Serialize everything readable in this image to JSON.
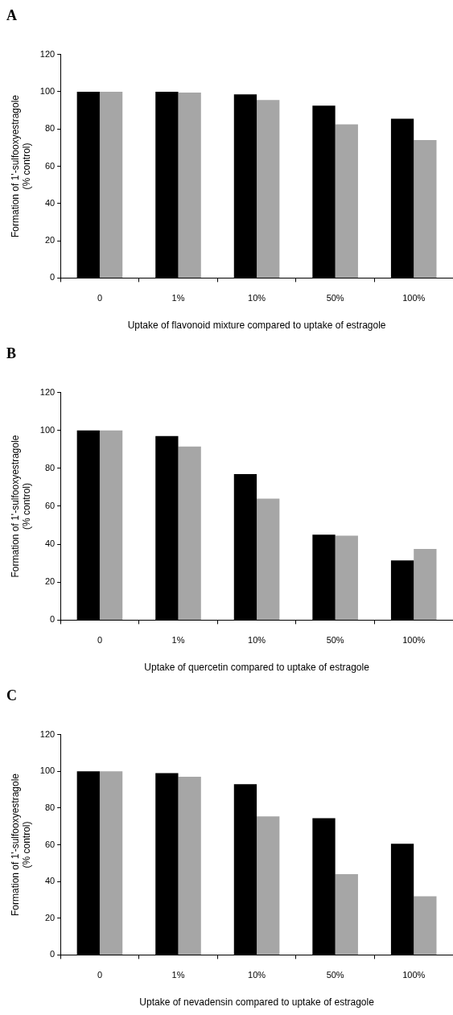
{
  "chart_data": [
    {
      "type": "bar",
      "title": "A",
      "categories": [
        "0",
        "1%",
        "10%",
        "50%",
        "100%"
      ],
      "series": [
        {
          "color": "#000000",
          "values": [
            100,
            100,
            98.5,
            92.5,
            85.5
          ]
        },
        {
          "color": "#a6a6a6",
          "values": [
            100,
            99.5,
            95.5,
            82.5,
            74
          ]
        }
      ],
      "xlabel": "Uptake of flavonoid mixture compared to uptake of estragole",
      "ylabel": "Formation of 1'-sulfooxyestragole\n(% control)",
      "ylim": [
        0,
        120
      ],
      "yticks": [
        0,
        20,
        40,
        60,
        80,
        100,
        120
      ],
      "legend": false
    },
    {
      "type": "bar",
      "title": "B",
      "categories": [
        "0",
        "1%",
        "10%",
        "50%",
        "100%"
      ],
      "series": [
        {
          "color": "#000000",
          "values": [
            100,
            97,
            77,
            45,
            31.5
          ]
        },
        {
          "color": "#a6a6a6",
          "values": [
            100,
            91.5,
            64,
            44.5,
            37.5
          ]
        }
      ],
      "xlabel": "Uptake of quercetin compared to uptake of estragole",
      "ylabel": "Formation of 1'-sulfooxyestragole\n(% control)",
      "ylim": [
        0,
        120
      ],
      "yticks": [
        0,
        20,
        40,
        60,
        80,
        100,
        120
      ],
      "legend": false
    },
    {
      "type": "bar",
      "title": "C",
      "categories": [
        "0",
        "1%",
        "10%",
        "50%",
        "100%"
      ],
      "series": [
        {
          "color": "#000000",
          "values": [
            100,
            99,
            93,
            74.5,
            60.5
          ]
        },
        {
          "color": "#a6a6a6",
          "values": [
            100,
            97,
            75.5,
            44,
            32
          ]
        }
      ],
      "xlabel": "Uptake of nevadensin compared to uptake of estragole",
      "ylabel": "Formation of 1'-sulfooxyestragole\n(% control)",
      "ylim": [
        0,
        120
      ],
      "yticks": [
        0,
        20,
        40,
        60,
        80,
        100,
        120
      ],
      "legend": false
    }
  ]
}
